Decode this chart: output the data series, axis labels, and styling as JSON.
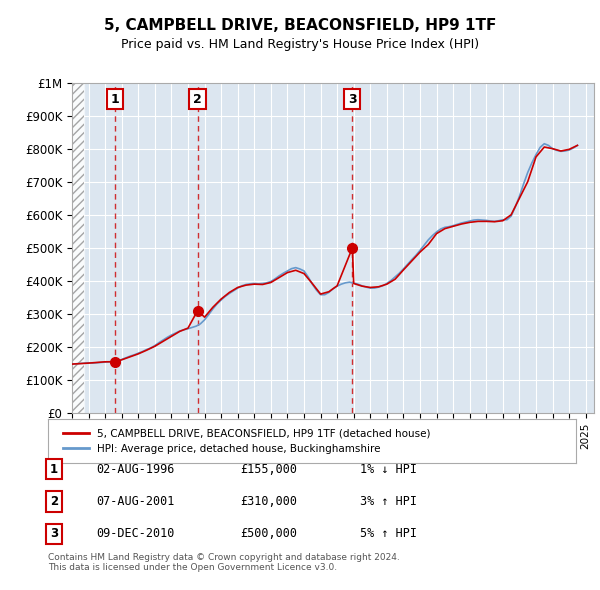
{
  "title": "5, CAMPBELL DRIVE, BEACONSFIELD, HP9 1TF",
  "subtitle": "Price paid vs. HM Land Registry's House Price Index (HPI)",
  "ylabel": "",
  "xlabel": "",
  "ylim": [
    0,
    1000000
  ],
  "yticks": [
    0,
    100000,
    200000,
    300000,
    400000,
    500000,
    600000,
    700000,
    800000,
    900000,
    1000000
  ],
  "ytick_labels": [
    "£0",
    "£100K",
    "£200K",
    "£300K",
    "£400K",
    "£500K",
    "£600K",
    "£700K",
    "£800K",
    "£900K",
    "£1M"
  ],
  "xlim_start": 1994.0,
  "xlim_end": 2025.5,
  "hatch_end": 1994.75,
  "line_color_price": "#cc0000",
  "line_color_hpi": "#6699cc",
  "sale_points": [
    {
      "year": 1996.58,
      "price": 155000,
      "label": "1"
    },
    {
      "year": 2001.58,
      "price": 310000,
      "label": "2"
    },
    {
      "year": 2010.92,
      "price": 500000,
      "label": "3"
    }
  ],
  "legend_line1": "5, CAMPBELL DRIVE, BEACONSFIELD, HP9 1TF (detached house)",
  "legend_line2": "HPI: Average price, detached house, Buckinghamshire",
  "table_rows": [
    {
      "num": "1",
      "date": "02-AUG-1996",
      "price": "£155,000",
      "change": "1% ↓ HPI"
    },
    {
      "num": "2",
      "date": "07-AUG-2001",
      "price": "£310,000",
      "change": "3% ↑ HPI"
    },
    {
      "num": "3",
      "date": "09-DEC-2010",
      "price": "£500,000",
      "change": "5% ↑ HPI"
    }
  ],
  "footer": "Contains HM Land Registry data © Crown copyright and database right 2024.\nThis data is licensed under the Open Government Licence v3.0.",
  "background_color": "#e8eef4",
  "plot_bg_color": "#dce6f0",
  "hpi_data_x": [
    1994.0,
    1994.25,
    1994.5,
    1994.75,
    1995.0,
    1995.25,
    1995.5,
    1995.75,
    1996.0,
    1996.25,
    1996.5,
    1996.75,
    1997.0,
    1997.25,
    1997.5,
    1997.75,
    1998.0,
    1998.25,
    1998.5,
    1998.75,
    1999.0,
    1999.25,
    1999.5,
    1999.75,
    2000.0,
    2000.25,
    2000.5,
    2000.75,
    2001.0,
    2001.25,
    2001.5,
    2001.75,
    2002.0,
    2002.25,
    2002.5,
    2002.75,
    2003.0,
    2003.25,
    2003.5,
    2003.75,
    2004.0,
    2004.25,
    2004.5,
    2004.75,
    2005.0,
    2005.25,
    2005.5,
    2005.75,
    2006.0,
    2006.25,
    2006.5,
    2006.75,
    2007.0,
    2007.25,
    2007.5,
    2007.75,
    2008.0,
    2008.25,
    2008.5,
    2008.75,
    2009.0,
    2009.25,
    2009.5,
    2009.75,
    2010.0,
    2010.25,
    2010.5,
    2010.75,
    2011.0,
    2011.25,
    2011.5,
    2011.75,
    2012.0,
    2012.25,
    2012.5,
    2012.75,
    2013.0,
    2013.25,
    2013.5,
    2013.75,
    2014.0,
    2014.25,
    2014.5,
    2014.75,
    2015.0,
    2015.25,
    2015.5,
    2015.75,
    2016.0,
    2016.25,
    2016.5,
    2016.75,
    2017.0,
    2017.25,
    2017.5,
    2017.75,
    2018.0,
    2018.25,
    2018.5,
    2018.75,
    2019.0,
    2019.25,
    2019.5,
    2019.75,
    2020.0,
    2020.25,
    2020.5,
    2020.75,
    2021.0,
    2021.25,
    2021.5,
    2021.75,
    2022.0,
    2022.25,
    2022.5,
    2022.75,
    2023.0,
    2023.25,
    2023.5,
    2023.75,
    2024.0,
    2024.25,
    2024.5
  ],
  "hpi_data_y": [
    148000,
    149000,
    150000,
    151000,
    152000,
    151000,
    152000,
    153000,
    154000,
    155000,
    156000,
    158000,
    162000,
    167000,
    172000,
    176000,
    181000,
    186000,
    192000,
    197000,
    204000,
    213000,
    221000,
    229000,
    236000,
    242000,
    248000,
    252000,
    255000,
    259000,
    263000,
    270000,
    282000,
    298000,
    315000,
    330000,
    342000,
    353000,
    362000,
    370000,
    378000,
    385000,
    389000,
    391000,
    392000,
    391000,
    392000,
    394000,
    398000,
    406000,
    415000,
    423000,
    430000,
    437000,
    440000,
    436000,
    430000,
    412000,
    390000,
    372000,
    358000,
    358000,
    365000,
    376000,
    384000,
    390000,
    394000,
    396000,
    393000,
    390000,
    385000,
    381000,
    378000,
    378000,
    381000,
    385000,
    392000,
    401000,
    412000,
    423000,
    436000,
    450000,
    464000,
    477000,
    492000,
    508000,
    524000,
    537000,
    548000,
    557000,
    562000,
    564000,
    567000,
    571000,
    575000,
    578000,
    581000,
    584000,
    585000,
    584000,
    583000,
    581000,
    580000,
    582000,
    585000,
    585000,
    596000,
    624000,
    656000,
    693000,
    728000,
    757000,
    782000,
    804000,
    815000,
    810000,
    800000,
    795000,
    792000,
    793000,
    796000,
    802000,
    810000
  ],
  "price_data_x": [
    1994.0,
    1994.5,
    1995.0,
    1995.5,
    1996.0,
    1996.58,
    1997.0,
    1997.5,
    1998.0,
    1998.5,
    1999.0,
    1999.5,
    2000.0,
    2000.5,
    2001.0,
    2001.58,
    2002.0,
    2002.5,
    2003.0,
    2003.5,
    2004.0,
    2004.5,
    2005.0,
    2005.5,
    2006.0,
    2006.5,
    2007.0,
    2007.5,
    2008.0,
    2008.5,
    2009.0,
    2009.5,
    2010.0,
    2010.92,
    2011.0,
    2011.5,
    2012.0,
    2012.5,
    2013.0,
    2013.5,
    2014.0,
    2014.5,
    2015.0,
    2015.5,
    2016.0,
    2016.5,
    2017.0,
    2017.5,
    2018.0,
    2018.5,
    2019.0,
    2019.5,
    2020.0,
    2020.5,
    2021.0,
    2021.5,
    2022.0,
    2022.5,
    2023.0,
    2023.5,
    2024.0,
    2024.5
  ],
  "price_data_y": [
    148000,
    149500,
    151000,
    153000,
    155000,
    155000,
    161000,
    170000,
    179000,
    190000,
    202000,
    217000,
    232000,
    247000,
    257000,
    310000,
    290000,
    320000,
    345000,
    365000,
    380000,
    387000,
    390000,
    389000,
    395000,
    410000,
    425000,
    432000,
    422000,
    392000,
    360000,
    367000,
    385000,
    500000,
    392000,
    384000,
    380000,
    382000,
    390000,
    405000,
    433000,
    460000,
    487000,
    510000,
    543000,
    558000,
    565000,
    572000,
    577000,
    580000,
    580000,
    579000,
    582000,
    600000,
    650000,
    700000,
    775000,
    805000,
    800000,
    793000,
    798000,
    810000
  ]
}
